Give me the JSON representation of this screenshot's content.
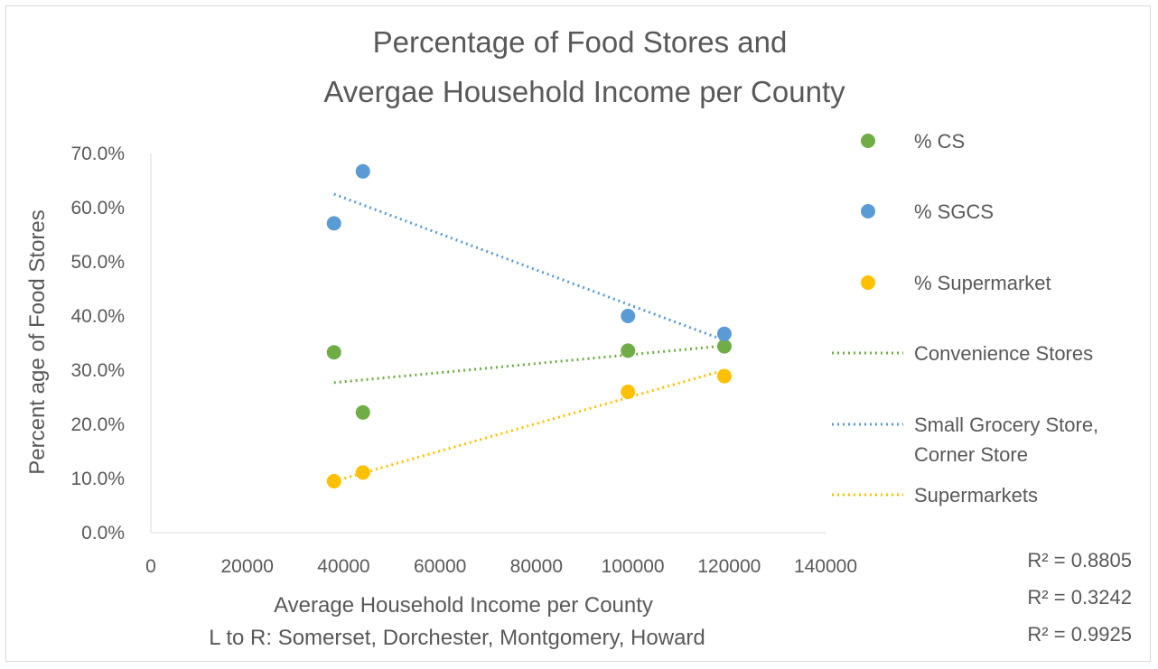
{
  "chart_data": {
    "type": "scatter",
    "title": [
      "Percentage of Food Stores and",
      "Avergae Household Income per County"
    ],
    "xlabel": "Average Household Income per County",
    "xlabel_sub": "L to R: Somerset, Dorchester, Montgomery, Howard",
    "ylabel": "Percent age of Food Stores",
    "xlim": [
      0,
      140000
    ],
    "ylim": [
      0,
      0.7
    ],
    "x_ticks": [
      0,
      20000,
      40000,
      60000,
      80000,
      100000,
      120000,
      140000
    ],
    "x_tick_labels": [
      "0",
      "20000",
      "40000",
      "60000",
      "80000",
      "100000",
      "120000",
      "140000"
    ],
    "y_ticks": [
      0,
      0.1,
      0.2,
      0.3,
      0.4,
      0.5,
      0.6,
      0.7
    ],
    "y_tick_labels": [
      "0.0%",
      "10.0%",
      "20.0%",
      "30.0%",
      "40.0%",
      "50.0%",
      "60.0%",
      "70.0%"
    ],
    "grid": false,
    "legend_position": "right",
    "series": [
      {
        "name": "% CS",
        "color": "#70ad47",
        "x": [
          38000,
          44000,
          99000,
          119000
        ],
        "y": [
          0.333,
          0.222,
          0.336,
          0.344
        ]
      },
      {
        "name": "% SGCS",
        "color": "#5b9bd5",
        "x": [
          38000,
          44000,
          99000,
          119000
        ],
        "y": [
          0.571,
          0.667,
          0.4,
          0.367
        ]
      },
      {
        "name": "% Supermarket",
        "color": "#ffc000",
        "x": [
          38000,
          44000,
          99000,
          119000
        ],
        "y": [
          0.095,
          0.111,
          0.26,
          0.289
        ]
      }
    ],
    "trendlines": [
      {
        "name": "Convenience Stores",
        "color": "#70ad47",
        "x": [
          38000,
          119000
        ],
        "y": [
          0.277,
          0.345
        ]
      },
      {
        "name": "Small Grocery Store, Corner Store",
        "color": "#5b9bd5",
        "x": [
          38000,
          119000
        ],
        "y": [
          0.625,
          0.355
        ]
      },
      {
        "name": "Supermarkets",
        "color": "#ffc000",
        "x": [
          38000,
          119000
        ],
        "y": [
          0.095,
          0.3
        ]
      }
    ],
    "legend_labels": [
      "% CS",
      "% SGCS",
      "% Supermarket",
      "Convenience Stores",
      "Small Grocery Store,",
      "Corner Store",
      "Supermarkets"
    ],
    "r_squared": [
      "R² = 0.8805",
      "R² = 0.3242",
      "R² = 0.9925"
    ]
  }
}
